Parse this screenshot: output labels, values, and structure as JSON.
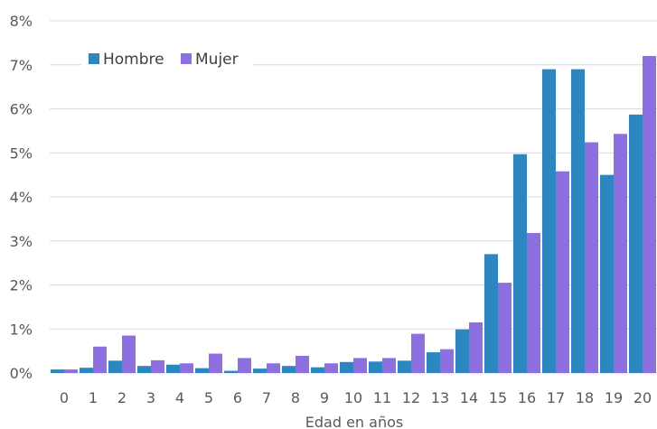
{
  "chart_data": {
    "type": "bar",
    "categories": [
      "0",
      "1",
      "2",
      "3",
      "4",
      "5",
      "6",
      "7",
      "8",
      "9",
      "10",
      "11",
      "12",
      "13",
      "14",
      "15",
      "16",
      "17",
      "18",
      "19",
      "20"
    ],
    "series": [
      {
        "name": "Hombre",
        "color": "#2E86C1",
        "values": [
          0.08,
          0.12,
          0.28,
          0.16,
          0.19,
          0.11,
          0.05,
          0.1,
          0.16,
          0.13,
          0.25,
          0.26,
          0.28,
          0.47,
          0.99,
          2.7,
          4.97,
          6.9,
          6.9,
          4.5,
          5.87
        ]
      },
      {
        "name": "Mujer",
        "color": "#8E6FE0",
        "values": [
          0.08,
          0.6,
          0.85,
          0.29,
          0.22,
          0.44,
          0.34,
          0.22,
          0.39,
          0.22,
          0.34,
          0.34,
          0.89,
          0.54,
          1.15,
          2.05,
          3.18,
          4.58,
          5.24,
          5.43,
          7.2
        ]
      }
    ],
    "xlabel": "Edad en años",
    "ylabel": "",
    "ylim": [
      0,
      8
    ],
    "yticks": [
      "0%",
      "1%",
      "2%",
      "3%",
      "4%",
      "5%",
      "6%",
      "7%",
      "8%"
    ],
    "grid": true,
    "legend": "top-left"
  }
}
